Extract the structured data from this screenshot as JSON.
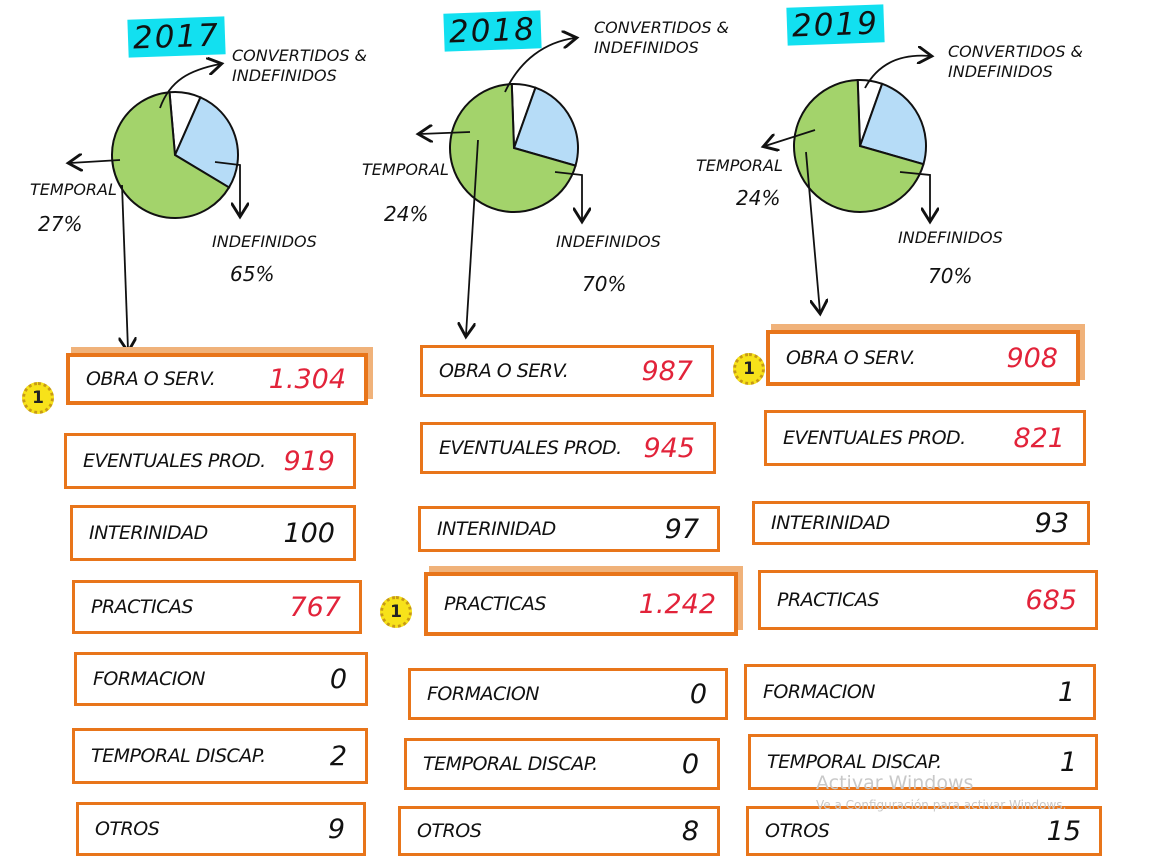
{
  "colors": {
    "indefinidos": "#a3d36b",
    "temporal": "#b6dcf7",
    "convertidos": "#ffffff",
    "highlight": "#e8751a",
    "red_value": "#e2233a",
    "year_bg": "#12e0f0"
  },
  "chart_data": [
    {
      "type": "pie",
      "title": "2017",
      "labels": [
        "CONVERTIDOS & INDEFINIDOS",
        "TEMPORAL",
        "INDEFINIDOS"
      ],
      "values": [
        8,
        27,
        65
      ],
      "value_labels": [
        "",
        "27%",
        "65%"
      ]
    },
    {
      "type": "pie",
      "title": "2018",
      "labels": [
        "CONVERTIDOS & INDEFINIDOS",
        "TEMPORAL",
        "INDEFINIDOS"
      ],
      "values": [
        6,
        24,
        70
      ],
      "value_labels": [
        "",
        "24%",
        "70%"
      ]
    },
    {
      "type": "pie",
      "title": "2019",
      "labels": [
        "CONVERTIDOS & INDEFINIDOS",
        "TEMPORAL",
        "INDEFINIDOS"
      ],
      "values": [
        6,
        24,
        70
      ],
      "value_labels": [
        "",
        "24%",
        "70%"
      ]
    },
    {
      "type": "table",
      "title": "2017",
      "rows": [
        {
          "label": "OBRA O SERV.",
          "value": "1.304",
          "highlight": true,
          "badge": "1"
        },
        {
          "label": "EVENTUALES PROD.",
          "value": "919"
        },
        {
          "label": "INTERINIDAD",
          "value": "100"
        },
        {
          "label": "PRACTICAS",
          "value": "767"
        },
        {
          "label": "FORMACION",
          "value": "0"
        },
        {
          "label": "TEMPORAL DISCAP.",
          "value": "2"
        },
        {
          "label": "OTROS",
          "value": "9"
        }
      ]
    },
    {
      "type": "table",
      "title": "2018",
      "rows": [
        {
          "label": "OBRA O SERV.",
          "value": "987"
        },
        {
          "label": "EVENTUALES PROD.",
          "value": "945"
        },
        {
          "label": "INTERINIDAD",
          "value": "97"
        },
        {
          "label": "PRACTICAS",
          "value": "1.242",
          "highlight": true,
          "badge": "1"
        },
        {
          "label": "FORMACION",
          "value": "0"
        },
        {
          "label": "TEMPORAL DISCAP.",
          "value": "0"
        },
        {
          "label": "OTROS",
          "value": "8"
        }
      ]
    },
    {
      "type": "table",
      "title": "2019",
      "rows": [
        {
          "label": "OBRA O SERV.",
          "value": "908",
          "highlight": true,
          "badge": "1"
        },
        {
          "label": "EVENTUALES PROD.",
          "value": "821"
        },
        {
          "label": "INTERINIDAD",
          "value": "93"
        },
        {
          "label": "PRACTICAS",
          "value": "685"
        },
        {
          "label": "FORMACION",
          "value": "1"
        },
        {
          "label": "TEMPORAL DISCAP.",
          "value": "1"
        },
        {
          "label": "OTROS",
          "value": "15"
        }
      ]
    }
  ],
  "labels": {
    "y2017": "2017",
    "y2018": "2018",
    "y2019": "2019",
    "convertidos": "CONVERTIDOS & INDEFINIDOS",
    "temporal": "TEMPORAL",
    "indefinidos": "INDEFINIDOS",
    "t2017": "27%",
    "i2017": "65%",
    "t2018": "24%",
    "i2018": "70%",
    "t2019": "24%",
    "i2019": "70%"
  },
  "rows_2017": [
    {
      "label": "OBRA O SERV.",
      "value": "1.304"
    },
    {
      "label": "EVENTUALES PROD.",
      "value": "919"
    },
    {
      "label": "INTERINIDAD",
      "value": "100"
    },
    {
      "label": "PRACTICAS",
      "value": "767"
    },
    {
      "label": "FORMACION",
      "value": "0"
    },
    {
      "label": "TEMPORAL DISCAP.",
      "value": "2"
    },
    {
      "label": "OTROS",
      "value": "9"
    }
  ],
  "rows_2018": [
    {
      "label": "OBRA O SERV.",
      "value": "987"
    },
    {
      "label": "EVENTUALES PROD.",
      "value": "945"
    },
    {
      "label": "INTERINIDAD",
      "value": "97"
    },
    {
      "label": "PRACTICAS",
      "value": "1.242"
    },
    {
      "label": "FORMACION",
      "value": "0"
    },
    {
      "label": "TEMPORAL DISCAP.",
      "value": "0"
    },
    {
      "label": "OTROS",
      "value": "8"
    }
  ],
  "rows_2019": [
    {
      "label": "OBRA O SERV.",
      "value": "908"
    },
    {
      "label": "EVENTUALES PROD.",
      "value": "821"
    },
    {
      "label": "INTERINIDAD",
      "value": "93"
    },
    {
      "label": "PRACTICAS",
      "value": "685"
    },
    {
      "label": "FORMACION",
      "value": "1"
    },
    {
      "label": "TEMPORAL DISCAP.",
      "value": "1"
    },
    {
      "label": "OTROS",
      "value": "15"
    }
  ],
  "badge": "1",
  "watermark": {
    "title": "Activar Windows",
    "subtitle": "Ve a Configuración para activar Windows."
  }
}
